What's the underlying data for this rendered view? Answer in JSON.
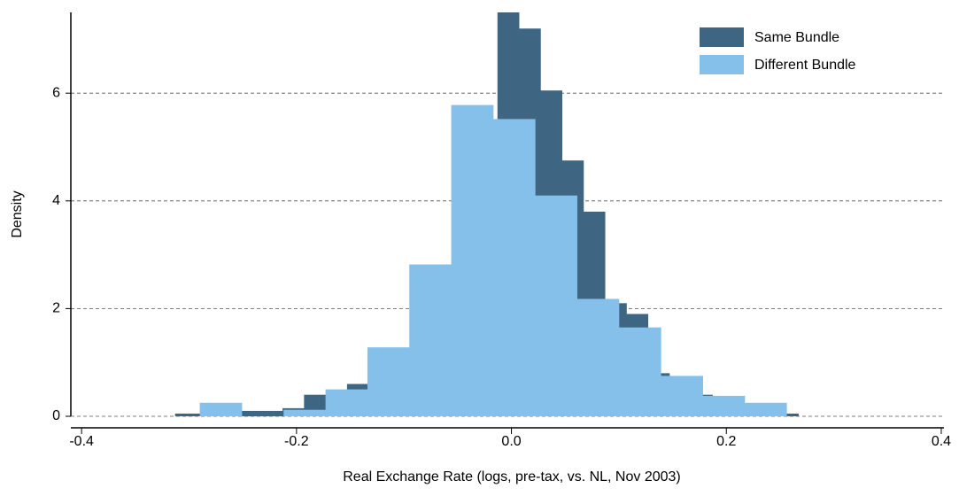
{
  "chart_data": {
    "type": "histogram",
    "x_label": "Real Exchange Rate (logs, pre-tax, vs. NL, Nov 2003)",
    "y_label": "Density",
    "series": [
      {
        "name": "Same Bundle",
        "color": "#3e6581",
        "bins": [
          -0.313,
          -0.293,
          -0.273,
          -0.253,
          -0.233,
          -0.213,
          -0.193,
          -0.173,
          -0.153,
          -0.133,
          -0.113,
          -0.093,
          -0.073,
          -0.053,
          -0.033,
          -0.013,
          0.007,
          0.027,
          0.047,
          0.067,
          0.087,
          0.107,
          0.127,
          0.147,
          0.167,
          0.187,
          0.207,
          0.227,
          0.247,
          0.267
        ],
        "values": [
          0.05,
          0.05,
          0.05,
          0.1,
          0.1,
          0.15,
          0.4,
          0.4,
          0.6,
          1.0,
          1.2,
          2.0,
          2.8,
          4.0,
          5.0,
          7.5,
          7.2,
          6.05,
          4.75,
          3.8,
          2.1,
          1.9,
          0.8,
          0.7,
          0.4,
          0.3,
          0.2,
          0.15,
          0.05
        ]
      },
      {
        "name": "Different Bundle",
        "color": "#84c0e9",
        "bins": [
          -0.29,
          -0.251,
          -0.212,
          -0.173,
          -0.134,
          -0.095,
          -0.056,
          -0.017,
          0.022,
          0.061,
          0.1,
          0.139,
          0.178,
          0.217,
          0.256
        ],
        "values": [
          0.25,
          0,
          0.12,
          0.5,
          1.28,
          2.82,
          5.78,
          5.52,
          4.1,
          2.18,
          1.65,
          0.75,
          0.38,
          0.25
        ]
      }
    ],
    "xlim": [
      -0.41,
      0.4025
    ],
    "xticks": [
      -0.4,
      -0.2,
      {
        "value": 0,
        "label": "0.0"
      },
      0.2,
      0.4
    ],
    "ylim": [
      0,
      7.5
    ],
    "yticks": [
      0,
      2,
      4,
      6
    ],
    "grid": true,
    "legend": "top-right"
  }
}
